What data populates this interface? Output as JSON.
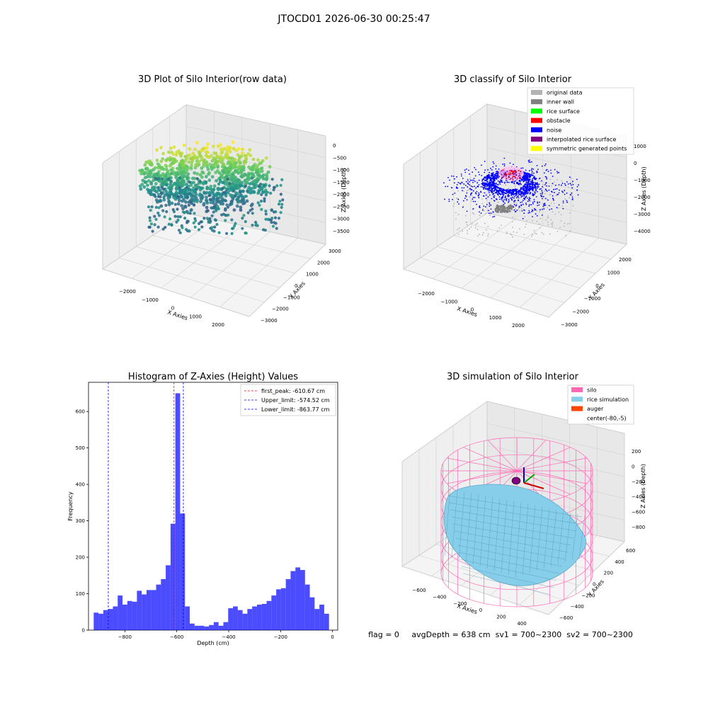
{
  "suptitle": "JTOCD01 2026-06-30 00:25:47",
  "footer": "flag = 0     avgDepth = 638 cm  sv1 = 700~2300  sv2 = 700~2300",
  "chart_data": [
    {
      "type": "scatter",
      "projection": "3d",
      "title": "3D Plot of Silo Interior(row data)",
      "xlabel": "X Axies",
      "ylabel": "Y Axies",
      "zlabel": "Z Axies (Depth)",
      "x_ticks": [
        "−2000",
        "−1000",
        "0",
        "1000",
        "2000"
      ],
      "y_ticks": [
        "−3000",
        "−2000",
        "−1000",
        "0",
        "1000",
        "2000",
        "3000"
      ],
      "z_ticks": [
        "0",
        "−500",
        "−1000",
        "−1500",
        "−2000",
        "−2500",
        "−3000",
        "−3500"
      ],
      "colormap": "viridis",
      "grid": true
    },
    {
      "type": "scatter",
      "projection": "3d",
      "title": "3D classify of Silo Interior",
      "xlabel": "X Axies",
      "ylabel": "Y Axies",
      "zlabel": "Z Axies (Depth)",
      "x_ticks": [
        "−2000",
        "−1000",
        "0",
        "1000",
        "2000"
      ],
      "y_ticks": [
        "−3000",
        "−2000",
        "−1000",
        "0",
        "1000",
        "2000"
      ],
      "z_ticks": [
        "1000",
        "0",
        "−1000",
        "−2000",
        "−3000",
        "−4000"
      ],
      "legend_position": "upper-right",
      "legend": [
        {
          "label": "original data",
          "color": "#b3b3b3"
        },
        {
          "label": "inner wall",
          "color": "#808080"
        },
        {
          "label": "rice surface",
          "color": "#00ff00"
        },
        {
          "label": "obstacle",
          "color": "#ff0000"
        },
        {
          "label": "noise",
          "color": "#0000ff"
        },
        {
          "label": "interpolated rice surface",
          "color": "#800080"
        },
        {
          "label": "symmetric generated points",
          "color": "#ffff00"
        }
      ],
      "grid": true
    },
    {
      "type": "bar",
      "title": "Histogram of Z-Axies (Height) Values",
      "xlabel": "Depth (cm)",
      "ylabel": "Frequency",
      "xlim": [
        -940,
        20
      ],
      "ylim": [
        0,
        680
      ],
      "x_ticks": [
        -800,
        -600,
        -400,
        -200,
        0
      ],
      "y_ticks": [
        0,
        100,
        200,
        300,
        400,
        500,
        600
      ],
      "bin_start": -920,
      "bin_width": 18.5,
      "values": [
        48,
        45,
        55,
        58,
        65,
        95,
        70,
        80,
        78,
        108,
        98,
        110,
        110,
        125,
        140,
        178,
        292,
        650,
        320,
        65,
        18,
        12,
        12,
        10,
        14,
        22,
        12,
        22,
        60,
        65,
        55,
        45,
        58,
        65,
        70,
        72,
        80,
        95,
        112,
        115,
        140,
        162,
        172,
        165,
        125,
        90,
        58,
        70,
        45
      ],
      "bar_color": "#0000ff",
      "vlines": [
        {
          "label": "first_peak: -610.67 cm",
          "x": -610.67,
          "color": "#ff0000"
        },
        {
          "label": "Upper_limit: -574.52 cm",
          "x": -574.52,
          "color": "#0000ff"
        },
        {
          "label": "Lower_limit: -863.77 cm",
          "x": -863.77,
          "color": "#0000ff"
        }
      ],
      "legend_position": "upper-right"
    },
    {
      "type": "surface",
      "projection": "3d",
      "title": "3D simulation of Silo Interior",
      "xlabel": "X Axies",
      "ylabel": "Y Axies",
      "zlabel": "Z Axies (Depth)",
      "x_ticks": [
        "−600",
        "−400",
        "−200",
        "0",
        "200",
        "400"
      ],
      "y_ticks": [
        "−600",
        "−400",
        "−200",
        "0",
        "200",
        "400",
        "600"
      ],
      "z_ticks": [
        "200",
        "0",
        "−200",
        "−400",
        "−600",
        "−800"
      ],
      "legend_position": "upper-right",
      "legend": [
        {
          "label": "silo",
          "color": "#ff69b4"
        },
        {
          "label": "rice simulation",
          "color": "#87ceeb"
        },
        {
          "label": "auger",
          "color": "#ff4500"
        },
        {
          "label": "center(-80,-5)",
          "color": "#ffffff"
        }
      ]
    }
  ]
}
